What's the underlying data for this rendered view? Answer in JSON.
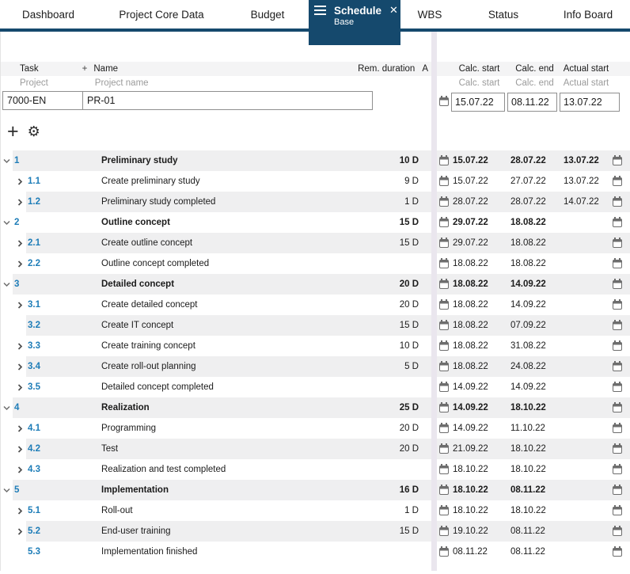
{
  "tab_bar": {
    "tabs": [
      {
        "label": "Dashboard"
      },
      {
        "label": "Project Core Data"
      },
      {
        "label": "Budget"
      },
      {
        "label": "Schedule",
        "sublabel": "Base",
        "active": true
      },
      {
        "label": "WBS"
      },
      {
        "label": "Status"
      },
      {
        "label": "Info Board"
      }
    ],
    "close_icon": "✕"
  },
  "columns": {
    "left": {
      "task": "Task",
      "add": "+",
      "name": "Name",
      "rem_duration": "Rem. duration",
      "assigned": "A"
    },
    "right": {
      "calc_start": "Calc. start",
      "calc_end": "Calc. end",
      "actual_start": "Actual start"
    }
  },
  "filters": {
    "task": "Project",
    "name": "Project name",
    "calc_start": "Calc. start",
    "calc_end": "Calc. end",
    "actual_start": "Actual start"
  },
  "project_row": {
    "id": "7000-EN",
    "name": "PR-01",
    "calc_start": "15.07.22",
    "calc_end": "08.11.22",
    "actual_start": "13.07.22"
  },
  "toolbar": {
    "add_icon": "+",
    "settings_icon": "⚙"
  },
  "rows": [
    {
      "num": "1",
      "name": "Preliminary study",
      "duration": "10 D",
      "calc_start": "15.07.22",
      "calc_end": "28.07.22",
      "actual_start": "13.07.22",
      "level": 1,
      "expander": "down"
    },
    {
      "num": "1.1",
      "name": "Create preliminary study",
      "duration": "9 D",
      "calc_start": "15.07.22",
      "calc_end": "27.07.22",
      "actual_start": "13.07.22",
      "level": 2,
      "expander": "right"
    },
    {
      "num": "1.2",
      "name": "Preliminary study completed",
      "duration": "1 D",
      "calc_start": "28.07.22",
      "calc_end": "28.07.22",
      "actual_start": "14.07.22",
      "level": 2,
      "expander": "right"
    },
    {
      "num": "2",
      "name": "Outline concept",
      "duration": "15 D",
      "calc_start": "29.07.22",
      "calc_end": "18.08.22",
      "actual_start": "",
      "level": 1,
      "expander": "down"
    },
    {
      "num": "2.1",
      "name": "Create outline concept",
      "duration": "15 D",
      "calc_start": "29.07.22",
      "calc_end": "18.08.22",
      "actual_start": "",
      "level": 2,
      "expander": "right"
    },
    {
      "num": "2.2",
      "name": "Outline concept completed",
      "duration": "",
      "calc_start": "18.08.22",
      "calc_end": "18.08.22",
      "actual_start": "",
      "level": 2,
      "expander": "right"
    },
    {
      "num": "3",
      "name": "Detailed concept",
      "duration": "20 D",
      "calc_start": "18.08.22",
      "calc_end": "14.09.22",
      "actual_start": "",
      "level": 1,
      "expander": "down"
    },
    {
      "num": "3.1",
      "name": "Create detailed concept",
      "duration": "20 D",
      "calc_start": "18.08.22",
      "calc_end": "14.09.22",
      "actual_start": "",
      "level": 2,
      "expander": "right"
    },
    {
      "num": "3.2",
      "name": "Create IT concept",
      "duration": "15 D",
      "calc_start": "18.08.22",
      "calc_end": "07.09.22",
      "actual_start": "",
      "level": 2,
      "expander": "none"
    },
    {
      "num": "3.3",
      "name": "Create training concept",
      "duration": "10 D",
      "calc_start": "18.08.22",
      "calc_end": "31.08.22",
      "actual_start": "",
      "level": 2,
      "expander": "right"
    },
    {
      "num": "3.4",
      "name": "Create roll-out planning",
      "duration": "5 D",
      "calc_start": "18.08.22",
      "calc_end": "24.08.22",
      "actual_start": "",
      "level": 2,
      "expander": "right"
    },
    {
      "num": "3.5",
      "name": "Detailed concept completed",
      "duration": "",
      "calc_start": "14.09.22",
      "calc_end": "14.09.22",
      "actual_start": "",
      "level": 2,
      "expander": "right"
    },
    {
      "num": "4",
      "name": "Realization",
      "duration": "25 D",
      "calc_start": "14.09.22",
      "calc_end": "18.10.22",
      "actual_start": "",
      "level": 1,
      "expander": "down"
    },
    {
      "num": "4.1",
      "name": "Programming",
      "duration": "20 D",
      "calc_start": "14.09.22",
      "calc_end": "11.10.22",
      "actual_start": "",
      "level": 2,
      "expander": "right"
    },
    {
      "num": "4.2",
      "name": "Test",
      "duration": "20 D",
      "calc_start": "21.09.22",
      "calc_end": "18.10.22",
      "actual_start": "",
      "level": 2,
      "expander": "right"
    },
    {
      "num": "4.3",
      "name": "Realization and test completed",
      "duration": "",
      "calc_start": "18.10.22",
      "calc_end": "18.10.22",
      "actual_start": "",
      "level": 2,
      "expander": "right"
    },
    {
      "num": "5",
      "name": "Implementation",
      "duration": "16 D",
      "calc_start": "18.10.22",
      "calc_end": "08.11.22",
      "actual_start": "",
      "level": 1,
      "expander": "down"
    },
    {
      "num": "5.1",
      "name": "Roll-out",
      "duration": "1 D",
      "calc_start": "18.10.22",
      "calc_end": "18.10.22",
      "actual_start": "",
      "level": 2,
      "expander": "right"
    },
    {
      "num": "5.2",
      "name": "End-user training",
      "duration": "15 D",
      "calc_start": "19.10.22",
      "calc_end": "08.11.22",
      "actual_start": "",
      "level": 2,
      "expander": "right"
    },
    {
      "num": "5.3",
      "name": "Implementation finished",
      "duration": "",
      "calc_start": "08.11.22",
      "calc_end": "08.11.22",
      "actual_start": "",
      "level": 2,
      "expander": "none"
    }
  ],
  "colors": {
    "accent": "#15496d",
    "row_stripe": "#efeff0",
    "task_number_blue": "#1e7db8",
    "panel_divider": "#eae6ee",
    "header_bg": "#f4f4f5"
  }
}
